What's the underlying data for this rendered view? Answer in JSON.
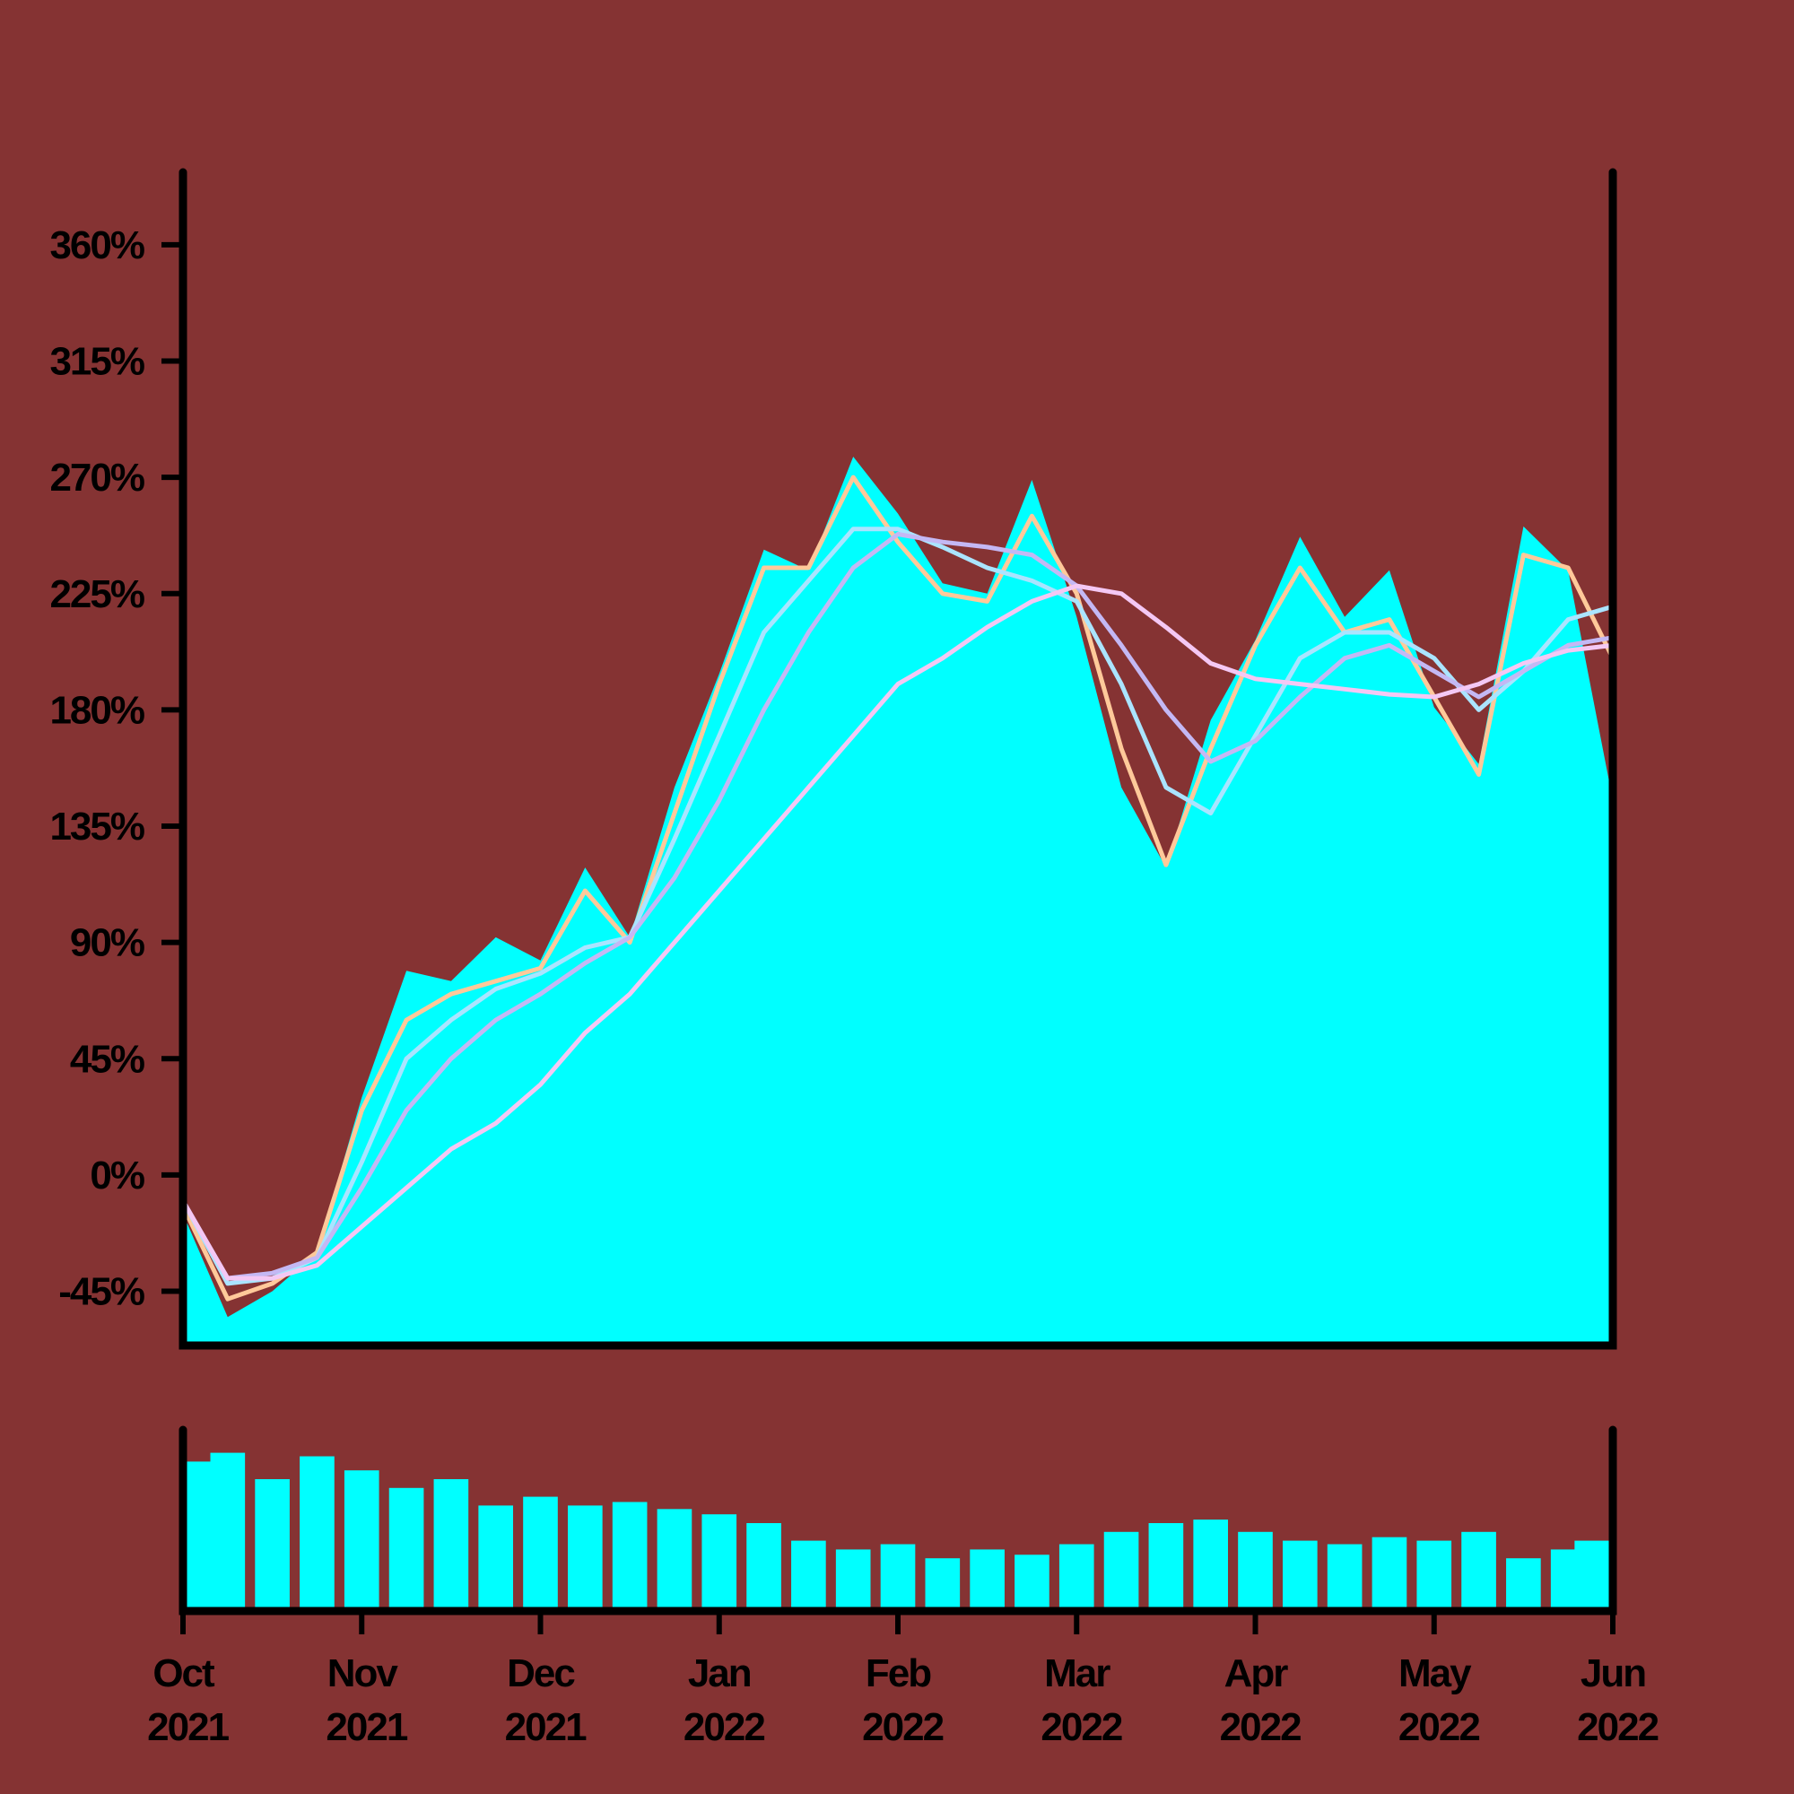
{
  "chart_data": [
    {
      "type": "line",
      "x": [
        0,
        0.25,
        0.5,
        0.75,
        1,
        1.25,
        1.5,
        1.75,
        2,
        2.25,
        2.5,
        2.75,
        3,
        3.25,
        3.5,
        3.75,
        4,
        4.25,
        4.5,
        4.75,
        5,
        5.25,
        5.5,
        5.75,
        6,
        6.25,
        6.5,
        6.75,
        7,
        7.25,
        7.5,
        7.75,
        8
      ],
      "xlim": [
        0,
        8
      ],
      "ylim": [
        -66,
        386
      ],
      "yticks": [
        {
          "value": -45,
          "label": "-45%"
        },
        {
          "value": 0,
          "label": "0%"
        },
        {
          "value": 45,
          "label": "45%"
        },
        {
          "value": 90,
          "label": "90%"
        },
        {
          "value": 135,
          "label": "135%"
        },
        {
          "value": 180,
          "label": "180%"
        },
        {
          "value": 225,
          "label": "225%"
        },
        {
          "value": 270,
          "label": "270%"
        },
        {
          "value": 315,
          "label": "315%"
        },
        {
          "value": 360,
          "label": "360%"
        }
      ],
      "series": [
        {
          "type": "area",
          "color": "#00ffff",
          "values": [
            -15,
            -55,
            -45,
            -30,
            30,
            79,
            75,
            92,
            83,
            119,
            92,
            150,
            194,
            242,
            234,
            278,
            256,
            229,
            225,
            269,
            216,
            150,
            119,
            176,
            207,
            247,
            216,
            234,
            181,
            159,
            251,
            234,
            145
          ]
        },
        {
          "type": "line",
          "color": "#ffc99a",
          "values": [
            -12,
            -48,
            -42,
            -30,
            25,
            60,
            70,
            75,
            80,
            110,
            90,
            140,
            190,
            235,
            235,
            270,
            245,
            225,
            222,
            255,
            225,
            165,
            120,
            165,
            205,
            235,
            210,
            215,
            185,
            155,
            240,
            235,
            200
          ]
        },
        {
          "type": "line",
          "color": "#aae4ff",
          "values": [
            -10,
            -42,
            -40,
            -32,
            5,
            45,
            60,
            72,
            78,
            88,
            92,
            130,
            170,
            210,
            230,
            250,
            250,
            243,
            235,
            230,
            222,
            190,
            150,
            140,
            170,
            200,
            210,
            210,
            200,
            180,
            195,
            215,
            220
          ]
        },
        {
          "type": "line",
          "color": "#c4b8f4",
          "values": [
            -10,
            -40,
            -38,
            -32,
            -5,
            25,
            45,
            60,
            70,
            82,
            92,
            115,
            145,
            180,
            210,
            235,
            248,
            245,
            243,
            240,
            228,
            205,
            180,
            160,
            168,
            185,
            200,
            205,
            195,
            185,
            195,
            205,
            208
          ]
        },
        {
          "type": "line",
          "color": "#f4c8f4",
          "values": [
            -10,
            -40,
            -40,
            -35,
            -20,
            -5,
            10,
            20,
            35,
            55,
            70,
            90,
            110,
            130,
            150,
            170,
            190,
            200,
            212,
            222,
            228,
            225,
            212,
            198,
            192,
            190,
            188,
            186,
            185,
            190,
            198,
            203,
            205
          ]
        }
      ]
    },
    {
      "type": "bar",
      "x": [
        0,
        0.25,
        0.5,
        0.75,
        1,
        1.25,
        1.5,
        1.75,
        2,
        2.25,
        2.5,
        2.75,
        3,
        3.25,
        3.5,
        3.75,
        4,
        4.25,
        4.5,
        4.75,
        5,
        5.25,
        5.5,
        5.75,
        6,
        6.25,
        6.5,
        6.75,
        7,
        7.25,
        7.5,
        7.75,
        8
      ],
      "xlim": [
        0,
        8
      ],
      "ylim": [
        0,
        100
      ],
      "color": "#00ffff",
      "values": [
        85,
        90,
        75,
        88,
        80,
        70,
        75,
        60,
        65,
        60,
        62,
        58,
        55,
        50,
        40,
        35,
        38,
        30,
        35,
        32,
        38,
        45,
        50,
        52,
        45,
        40,
        38,
        42,
        40,
        45,
        30,
        35,
        40
      ],
      "xticks": [
        {
          "value": 0,
          "label": "Oct 2021"
        },
        {
          "value": 1,
          "label": "Nov 2021"
        },
        {
          "value": 2,
          "label": "Dec 2021"
        },
        {
          "value": 3,
          "label": "Jan 2022"
        },
        {
          "value": 4,
          "label": "Feb 2022"
        },
        {
          "value": 5,
          "label": "Mar 2022"
        },
        {
          "value": 6,
          "label": "Apr 2022"
        },
        {
          "value": 7,
          "label": "May 2022"
        },
        {
          "value": 8,
          "label": "Jun 2022"
        }
      ]
    }
  ]
}
